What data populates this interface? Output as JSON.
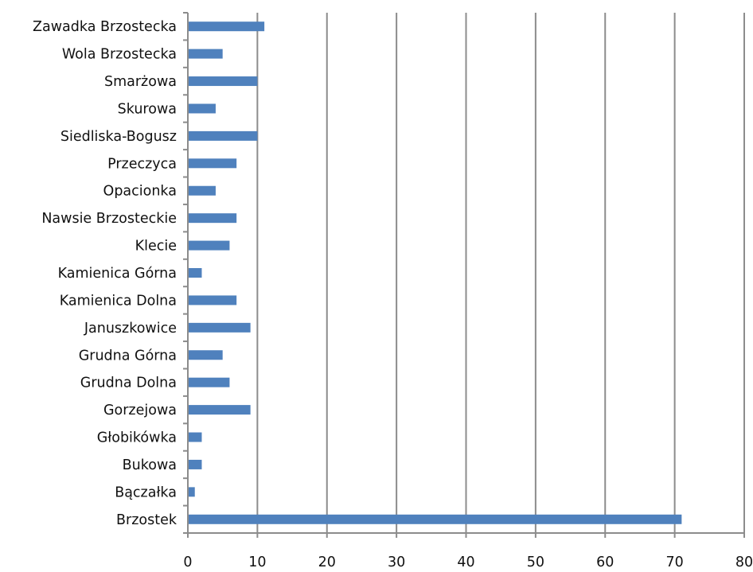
{
  "chart_data": {
    "type": "bar",
    "orientation": "horizontal",
    "title": "",
    "xlabel": "",
    "ylabel": "",
    "categories": [
      "Brzostek",
      "Bączałka",
      "Bukowa",
      "Głobikówka",
      "Gorzejowa",
      "Grudna Dolna",
      "Grudna Górna",
      "Januszkowice",
      "Kamienica Dolna",
      "Kamienica Górna",
      "Klecie",
      "Nawsie Brzosteckie",
      "Opacionka",
      "Przeczyca",
      "Siedliska-Bogusz",
      "Skurowa",
      "Smarżowa",
      "Wola Brzostecka",
      "Zawadka Brzostecka"
    ],
    "values": [
      71,
      1,
      2,
      2,
      9,
      6,
      5,
      9,
      7,
      2,
      6,
      7,
      4,
      7,
      10,
      4,
      10,
      5,
      11
    ],
    "xlim": [
      0,
      80
    ],
    "x_ticks": [
      "0",
      "10",
      "20",
      "30",
      "40",
      "50",
      "60",
      "70",
      "80"
    ],
    "grid": "vertical",
    "legend": "none",
    "bar_color": "#4f81bd",
    "grid_color": "#8c8c8c"
  }
}
